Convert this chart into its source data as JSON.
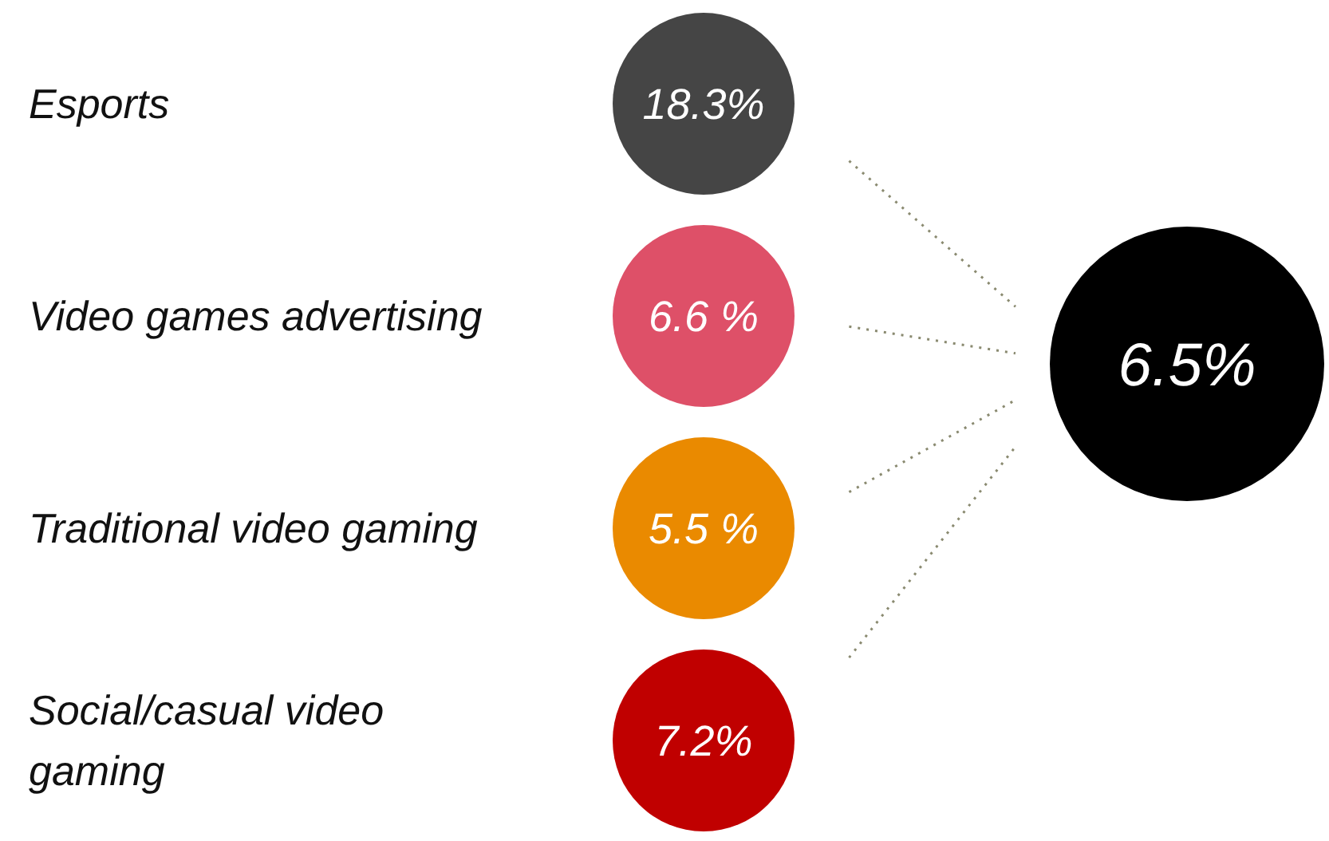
{
  "chart_data": {
    "type": "other",
    "categories": [
      "Esports",
      "Video games advertising",
      "Traditional video gaming",
      "Social/casual video gaming"
    ],
    "values": [
      18.3,
      6.6,
      5.5,
      7.2
    ],
    "value_labels": [
      "18.3%",
      "6.6 %",
      "5.5 %",
      "7.2%"
    ],
    "colors": [
      "#454545",
      "#de5068",
      "#ea8a00",
      "#c00000"
    ],
    "annotations": [
      "6.5%"
    ]
  }
}
